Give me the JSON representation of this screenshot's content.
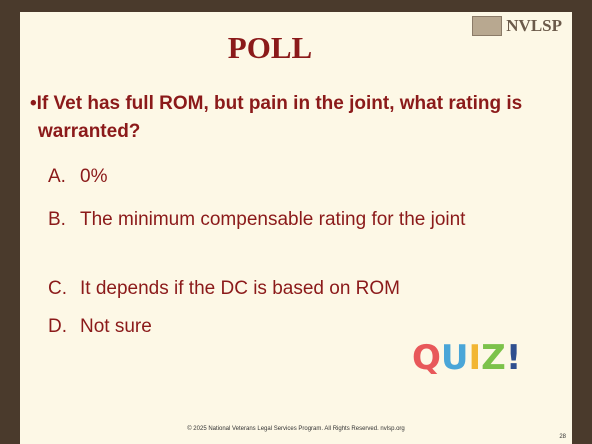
{
  "logo": "NVLSP",
  "title": "POLL",
  "question": "If Vet has full ROM, but pain in the joint, what rating is warranted?",
  "options": [
    {
      "letter": "A.",
      "text": "0%"
    },
    {
      "letter": "B.",
      "text": "The minimum compensable rating for the joint"
    },
    {
      "letter": "C.",
      "text": "It depends if the DC is based on ROM"
    },
    {
      "letter": "D.",
      "text": "Not sure"
    }
  ],
  "quiz": [
    "Q",
    "U",
    "I",
    "Z",
    "!"
  ],
  "footer": "© 2025 National Veterans Legal Services Program. All Rights Reserved. nvlsp.org",
  "page_number": "28"
}
